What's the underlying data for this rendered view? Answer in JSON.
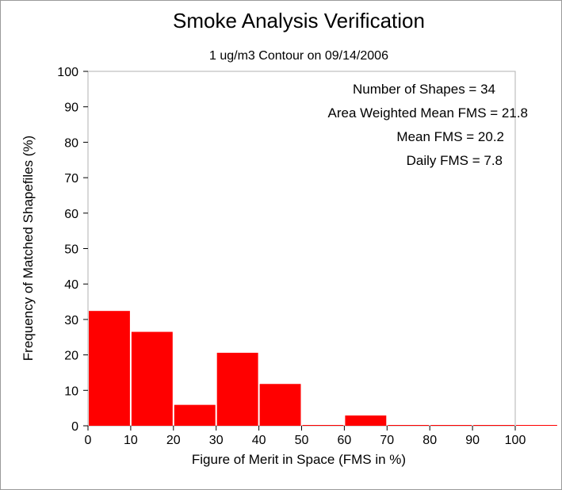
{
  "chart_data": {
    "type": "bar",
    "title": "Smoke Analysis Verification",
    "subtitle": "1 ug/m3 Contour on 09/14/2006",
    "xlabel": "Figure of Merit in Space (FMS in %)",
    "ylabel": "Frequency of Matched Shapefiles (%)",
    "xlim": [
      0,
      100
    ],
    "ylim": [
      0,
      100
    ],
    "x_ticks": [
      "0",
      "10",
      "20",
      "30",
      "40",
      "50",
      "60",
      "70",
      "80",
      "90",
      "100"
    ],
    "y_ticks": [
      "0",
      "10",
      "20",
      "30",
      "40",
      "50",
      "60",
      "70",
      "80",
      "90",
      "100"
    ],
    "bins": [
      {
        "start": 0,
        "end": 10,
        "value": 32.4
      },
      {
        "start": 10,
        "end": 20,
        "value": 26.5
      },
      {
        "start": 20,
        "end": 30,
        "value": 5.9
      },
      {
        "start": 30,
        "end": 40,
        "value": 20.6
      },
      {
        "start": 40,
        "end": 50,
        "value": 11.8
      },
      {
        "start": 50,
        "end": 60,
        "value": 0
      },
      {
        "start": 60,
        "end": 70,
        "value": 2.9
      },
      {
        "start": 70,
        "end": 80,
        "value": 0
      },
      {
        "start": 80,
        "end": 90,
        "value": 0
      },
      {
        "start": 90,
        "end": 100,
        "value": 0
      },
      {
        "start": 100,
        "end": 110,
        "value": 0
      }
    ],
    "bar_color": "#ff0000",
    "grid": false,
    "annotations": [
      "Number of Shapes = 34",
      "Area Weighted Mean FMS = 21.8",
      "Mean FMS = 20.2",
      "Daily FMS = 7.8"
    ]
  }
}
